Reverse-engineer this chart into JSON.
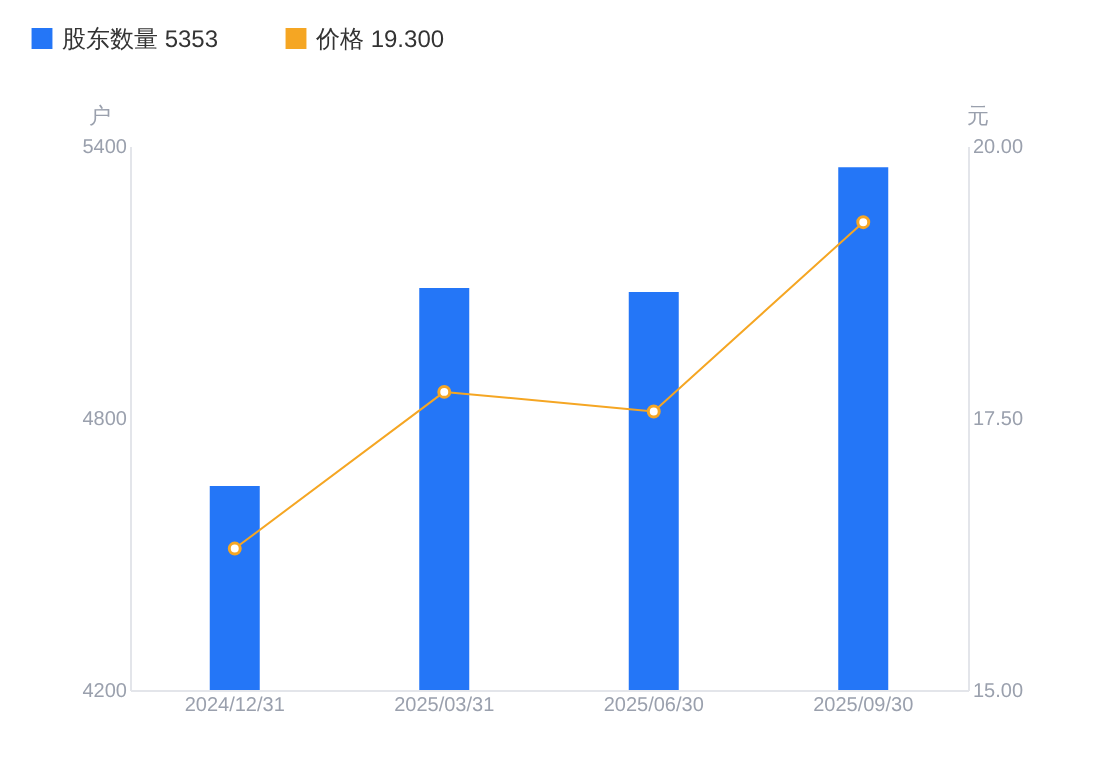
{
  "chart_data": {
    "type": "bar",
    "categories": [
      "2024/12/31",
      "2025/03/31",
      "2025/06/30",
      "2025/09/30"
    ],
    "ylabel": "户",
    "y2label": "元",
    "ylim": [
      4200,
      5400
    ],
    "yticks": [
      4200,
      4800,
      5400
    ],
    "y2lim": [
      15,
      20
    ],
    "y2ticks": [
      {
        "value": 15,
        "label": "15.00"
      },
      {
        "value": 17.5,
        "label": "17.50"
      },
      {
        "value": 20,
        "label": "20.00"
      }
    ],
    "legend": "top left",
    "marker": "circle",
    "line_style": "solid",
    "series": [
      {
        "name": "股东数量 5353",
        "color": "#2476f7",
        "values": [
          4650,
          5087,
          5078,
          5353
        ]
      },
      {
        "name": "价格 19.300",
        "type": "line",
        "axis": "y2",
        "color": "#f5a623",
        "values": [
          16.3,
          17.74,
          17.56,
          19.3
        ]
      }
    ]
  }
}
